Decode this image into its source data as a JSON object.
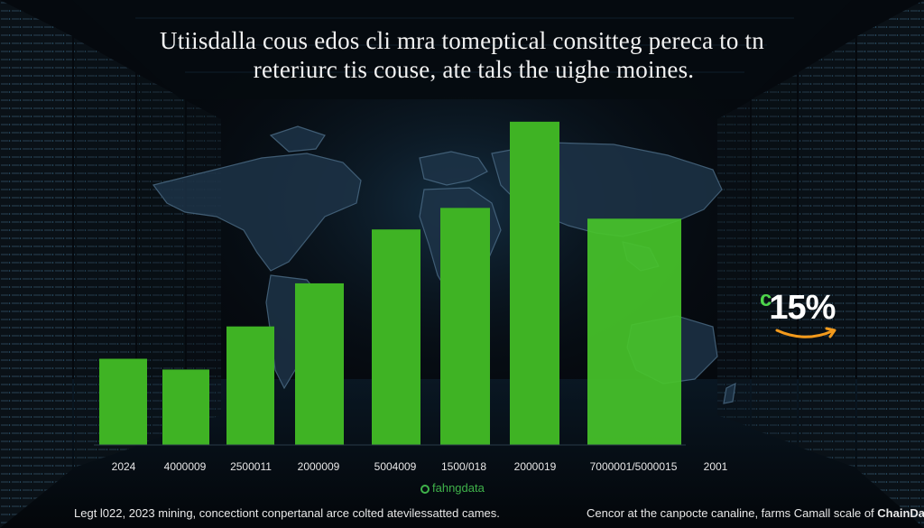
{
  "chart_data": {
    "type": "bar",
    "title_lines": [
      "Utiisdalla cous edos cli mra tomeptical consitteg pereca to tn",
      "reteriurc tis couse, ate tals the uighe moines."
    ],
    "categories": [
      "2024",
      "4000009",
      "2500011",
      "2000009",
      "5004009",
      "1500/018",
      "2000019",
      "7000001/5000015",
      "2001"
    ],
    "values": [
      16,
      14,
      22,
      30,
      40,
      44,
      60,
      42,
      null
    ],
    "ylim": [
      0,
      65
    ],
    "xlabel": "",
    "ylabel": "",
    "grid": false,
    "bar_color": "#3fb324",
    "bar_color_highlight": "#48c42a",
    "callout": {
      "prefix": "c",
      "value": "15%"
    }
  },
  "brand": {
    "name": "fahngdata",
    "color": "#3fb24a"
  },
  "footer": {
    "left": "Legt l022, 2023 mining, concectiont conpertanal arce colted atevilessatted cames.",
    "right_prefix": "Cencor at the canpocte canaline, farms Camall scale of ",
    "right_brand": "ChainData"
  }
}
